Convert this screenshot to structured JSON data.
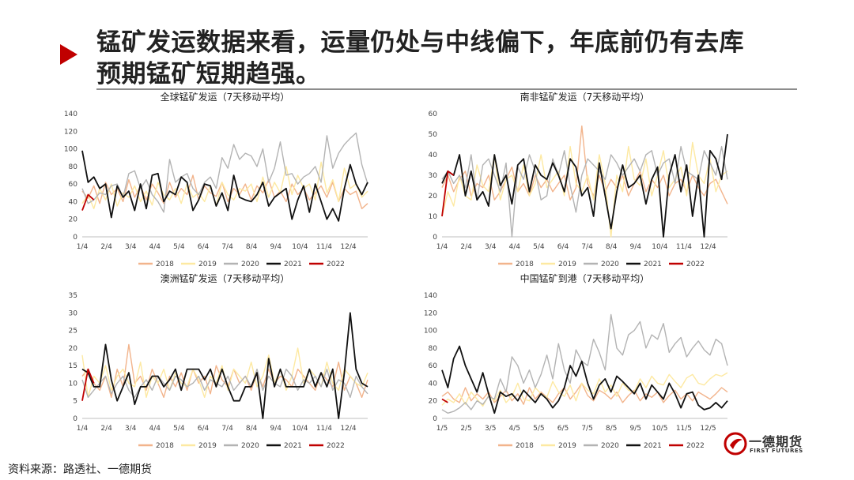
{
  "heading": {
    "line1": "锰矿发运数据来看，运量仍处与中线偏下，年底前仍有去库",
    "line2": "预期锰矿短期趋强。"
  },
  "source": "资料来源：路透社、一德期货",
  "logo": {
    "cn": "一德期货",
    "en": "FIRST FUTURES"
  },
  "series_colors": {
    "2018": "#f2b48c",
    "2019": "#fde9a2",
    "2020": "#b3b3b3",
    "2021": "#111111",
    "2022": "#c00000"
  },
  "chart_data": [
    {
      "type": "line",
      "title": "全球锰矿发运（7天移动平均）",
      "ylim": [
        0,
        140
      ],
      "yticks": [
        "0",
        "20",
        "40",
        "60",
        "80",
        "100",
        "120",
        "140"
      ],
      "xticks": [
        "1/4",
        "2/4",
        "3/4",
        "4/4",
        "5/4",
        "6/4",
        "7/4",
        "8/4",
        "9/4",
        "10/4",
        "11/4",
        "12/4"
      ],
      "legend": [
        "2018",
        "2019",
        "2020",
        "2021",
        "2022"
      ],
      "legend_position": "bottom",
      "series": [
        {
          "name": "2018",
          "values": [
            52,
            44,
            58,
            38,
            62,
            48,
            55,
            40,
            65,
            45,
            58,
            42,
            60,
            50,
            38,
            62,
            45,
            55,
            48,
            70,
            42,
            58,
            50,
            46,
            62,
            40,
            55,
            48,
            60,
            42,
            58,
            50,
            65,
            45,
            52,
            40,
            60,
            48,
            55,
            42,
            50,
            58,
            45,
            62,
            40,
            55,
            48,
            52,
            32,
            38
          ]
        },
        {
          "name": "2019",
          "values": [
            38,
            48,
            32,
            55,
            42,
            60,
            35,
            50,
            45,
            58,
            40,
            52,
            36,
            62,
            48,
            42,
            55,
            38,
            60,
            45,
            50,
            40,
            58,
            35,
            62,
            48,
            42,
            55,
            52,
            60,
            40,
            68,
            45,
            62,
            50,
            80,
            48,
            70,
            55,
            60,
            42,
            85,
            50,
            65,
            40,
            78,
            55,
            60,
            45,
            52
          ]
        },
        {
          "name": "2020",
          "values": [
            55,
            38,
            42,
            50,
            48,
            58,
            60,
            45,
            72,
            75,
            55,
            65,
            48,
            40,
            28,
            88,
            62,
            68,
            72,
            55,
            48,
            62,
            68,
            55,
            90,
            78,
            105,
            88,
            95,
            92,
            80,
            100,
            62,
            78,
            108,
            70,
            72,
            60,
            68,
            72,
            80,
            62,
            115,
            78,
            95,
            105,
            112,
            118,
            82,
            60
          ]
        },
        {
          "name": "2021",
          "values": [
            98,
            62,
            68,
            55,
            60,
            22,
            58,
            45,
            52,
            30,
            60,
            32,
            70,
            72,
            40,
            52,
            48,
            68,
            62,
            30,
            42,
            60,
            58,
            35,
            50,
            30,
            70,
            45,
            42,
            40,
            48,
            62,
            35,
            45,
            50,
            55,
            20,
            42,
            58,
            28,
            60,
            40,
            20,
            32,
            18,
            55,
            82,
            60,
            48,
            62
          ]
        },
        {
          "name": "2022",
          "values": [
            30,
            48,
            42
          ]
        }
      ]
    },
    {
      "type": "line",
      "title": "南非锰矿发运（7天移动平均）",
      "ylim": [
        0,
        60
      ],
      "yticks": [
        "0",
        "10",
        "20",
        "30",
        "40",
        "50",
        "60"
      ],
      "xticks": [
        "1/4",
        "2/4",
        "3/4",
        "4/4",
        "5/4",
        "6/4",
        "7/4",
        "8/4",
        "9/4",
        "10/4",
        "11/4",
        "12/4"
      ],
      "legend": [
        "2018",
        "2019",
        "2020",
        "2021",
        "2022"
      ],
      "legend_position": "bottom",
      "series": [
        {
          "name": "2018",
          "values": [
            24,
            30,
            22,
            28,
            32,
            20,
            26,
            24,
            30,
            18,
            22,
            28,
            34,
            22,
            26,
            20,
            30,
            24,
            28,
            22,
            26,
            30,
            18,
            24,
            54,
            26,
            20,
            30,
            22,
            28,
            24,
            30,
            20,
            26,
            32,
            22,
            28,
            24,
            30,
            20,
            26,
            28,
            22,
            30,
            24,
            20,
            26,
            28,
            22,
            16
          ]
        },
        {
          "name": "2019",
          "values": [
            10,
            22,
            15,
            30,
            20,
            18,
            35,
            25,
            22,
            40,
            18,
            28,
            30,
            22,
            35,
            20,
            26,
            40,
            24,
            28,
            32,
            20,
            44,
            26,
            22,
            30,
            18,
            40,
            26,
            0,
            30,
            22,
            44,
            28,
            25,
            38,
            20,
            30,
            42,
            24,
            28,
            34,
            20,
            46,
            30,
            26,
            38,
            22,
            30,
            32
          ]
        },
        {
          "name": "2020",
          "values": [
            28,
            32,
            26,
            30,
            24,
            40,
            18,
            35,
            38,
            30,
            22,
            36,
            0,
            34,
            28,
            40,
            32,
            18,
            20,
            38,
            30,
            42,
            25,
            12,
            30,
            38,
            35,
            32,
            28,
            40,
            36,
            30,
            34,
            38,
            32,
            40,
            42,
            30,
            36,
            38,
            26,
            44,
            32,
            30,
            28,
            42,
            36,
            30,
            44,
            28
          ]
        },
        {
          "name": "2021",
          "values": [
            26,
            32,
            30,
            40,
            20,
            32,
            18,
            22,
            15,
            40,
            25,
            30,
            16,
            35,
            38,
            22,
            35,
            30,
            28,
            36,
            30,
            22,
            38,
            34,
            20,
            24,
            10,
            36,
            20,
            4,
            22,
            35,
            24,
            26,
            30,
            16,
            28,
            34,
            0,
            30,
            40,
            22,
            35,
            10,
            30,
            0,
            42,
            38,
            28,
            50
          ]
        },
        {
          "name": "2022",
          "values": [
            10,
            32,
            30
          ]
        }
      ]
    },
    {
      "type": "line",
      "title": "澳洲锰矿发运（7天移动平均）",
      "ylim": [
        0,
        35
      ],
      "yticks": [
        "0",
        "5",
        "10",
        "15",
        "20",
        "25",
        "30",
        "35"
      ],
      "xticks": [
        "1/4",
        "2/4",
        "3/4",
        "4/4",
        "5/4",
        "6/4",
        "7/4",
        "8/4",
        "9/4",
        "10/4",
        "11/4",
        "12/4"
      ],
      "legend": [
        "2018",
        "2019",
        "2020",
        "2021",
        "2022"
      ],
      "legend_position": "bottom",
      "series": [
        {
          "name": "2018",
          "values": [
            12,
            14,
            10,
            8,
            12,
            6,
            14,
            9,
            21,
            10,
            12,
            8,
            14,
            10,
            6,
            12,
            9,
            13,
            8,
            14,
            10,
            12,
            7,
            15,
            11,
            9,
            14,
            10,
            12,
            8,
            13,
            9,
            14,
            10,
            12,
            11,
            9,
            14,
            12,
            10,
            8,
            13,
            11,
            9,
            16,
            8,
            12,
            10,
            6,
            11
          ]
        },
        {
          "name": "2019",
          "values": [
            18,
            6,
            12,
            10,
            15,
            8,
            12,
            14,
            10,
            9,
            16,
            6,
            12,
            10,
            14,
            8,
            13,
            10,
            9,
            14,
            11,
            6,
            12,
            10,
            15,
            8,
            14,
            12,
            10,
            16,
            9,
            12,
            18,
            10,
            14,
            8,
            12,
            20,
            10,
            14,
            12,
            9,
            16,
            10,
            8,
            14,
            12,
            10,
            9,
            13
          ]
        },
        {
          "name": "2020",
          "values": [
            11,
            6,
            8,
            10,
            12,
            7,
            10,
            12,
            8,
            6,
            9,
            11,
            8,
            12,
            10,
            8,
            12,
            11,
            9,
            10,
            12,
            8,
            11,
            10,
            9,
            12,
            8,
            10,
            12,
            9,
            14,
            8,
            12,
            10,
            9,
            14,
            12,
            8,
            11,
            10,
            12,
            9,
            14,
            8,
            11,
            10,
            6,
            12,
            9,
            7
          ]
        },
        {
          "name": "2021",
          "values": [
            14,
            13,
            9,
            9,
            21,
            11,
            5,
            9,
            13,
            4,
            9,
            9,
            12,
            12,
            9,
            11,
            14,
            8,
            14,
            14,
            14,
            11,
            14,
            9,
            14,
            9,
            5,
            5,
            9,
            9,
            13,
            0,
            17,
            9,
            14,
            9,
            9,
            9,
            9,
            14,
            9,
            13,
            9,
            14,
            0,
            13,
            30,
            14,
            10,
            9
          ]
        },
        {
          "name": "2022",
          "values": [
            5,
            14,
            10
          ]
        }
      ]
    },
    {
      "type": "line",
      "title": "中国锰矿到港（7天移动平均）",
      "ylim": [
        0,
        140
      ],
      "yticks": [
        "0",
        "20",
        "40",
        "60",
        "80",
        "100",
        "120",
        "140"
      ],
      "xticks": [
        "1/5",
        "2/5",
        "3/5",
        "4/5",
        "5/5",
        "6/5",
        "7/5",
        "8/5",
        "9/5",
        "10/5",
        "11/5",
        "12/5"
      ],
      "legend": [
        "2018",
        "2019",
        "2020",
        "2021",
        "2022"
      ],
      "legend_position": "bottom",
      "series": [
        {
          "name": "2018",
          "values": [
            25,
            30,
            22,
            18,
            35,
            20,
            28,
            22,
            30,
            18,
            25,
            32,
            20,
            28,
            16,
            35,
            22,
            30,
            24,
            18,
            28,
            35,
            22,
            30,
            40,
            26,
            20,
            32,
            28,
            22,
            30,
            18,
            26,
            32,
            20,
            28,
            24,
            30,
            18,
            26,
            32,
            22,
            28,
            20,
            30,
            26,
            22,
            28,
            35,
            30
          ]
        },
        {
          "name": "2019",
          "values": [
            15,
            22,
            18,
            28,
            16,
            30,
            22,
            14,
            26,
            20,
            32,
            18,
            25,
            40,
            22,
            20,
            35,
            28,
            24,
            42,
            30,
            25,
            38,
            20,
            40,
            32,
            28,
            45,
            30,
            38,
            25,
            40,
            32,
            30,
            45,
            35,
            48,
            40,
            38,
            50,
            42,
            35,
            46,
            50,
            40,
            38,
            45,
            50,
            48,
            52
          ]
        },
        {
          "name": "2020",
          "values": [
            10,
            6,
            8,
            12,
            18,
            10,
            20,
            16,
            25,
            22,
            45,
            30,
            70,
            60,
            40,
            55,
            35,
            50,
            72,
            45,
            85,
            55,
            40,
            78,
            65,
            60,
            90,
            75,
            55,
            118,
            80,
            72,
            95,
            100,
            110,
            80,
            95,
            90,
            108,
            75,
            85,
            92,
            70,
            80,
            88,
            78,
            72,
            90,
            85,
            60
          ]
        },
        {
          "name": "2021",
          "values": [
            55,
            35,
            68,
            82,
            60,
            45,
            30,
            52,
            28,
            6,
            30,
            25,
            28,
            20,
            32,
            25,
            18,
            28,
            22,
            12,
            20,
            35,
            60,
            48,
            65,
            40,
            22,
            38,
            45,
            30,
            48,
            42,
            35,
            28,
            40,
            22,
            38,
            30,
            22,
            40,
            28,
            12,
            28,
            30,
            15,
            10,
            12,
            18,
            12,
            20
          ]
        },
        {
          "name": "2022",
          "values": [
            22,
            18
          ]
        }
      ]
    }
  ]
}
